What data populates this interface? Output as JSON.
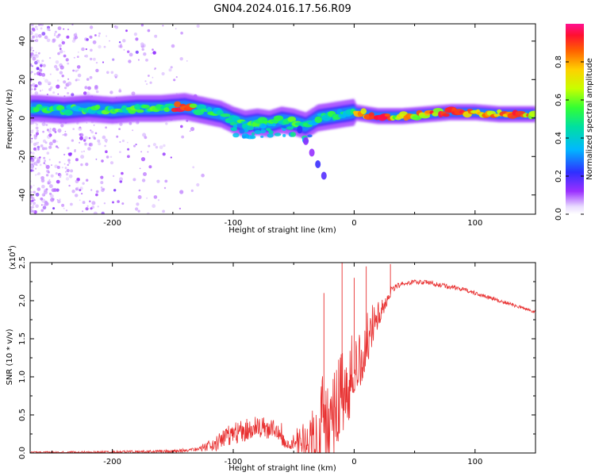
{
  "title": "GN04.2024.016.17.56.R09",
  "chart_data": [
    {
      "type": "heatmap",
      "xlabel": "Height of straight line (km)",
      "ylabel": "Frequency (Hz)",
      "xlim": [
        -268,
        150
      ],
      "ylim": [
        -50,
        49
      ],
      "xticks": [
        -200,
        -100,
        0,
        100
      ],
      "xtick_labels": [
        "-200",
        "-100",
        "0",
        "100"
      ],
      "yticks": [
        -40,
        -20,
        0,
        20,
        40
      ],
      "ytick_labels": [
        "-40",
        "-20",
        "0",
        "20",
        "40"
      ],
      "colorbar": {
        "label": "Normalized spectral amplitude",
        "range": [
          0,
          1
        ],
        "ticks": [
          0.0,
          0.2,
          0.4,
          0.6,
          0.8
        ],
        "tick_labels": [
          "0.0",
          "0.2",
          "0.4",
          "0.6",
          "0.8"
        ]
      },
      "ridge": {
        "x": [
          -262,
          -240,
          -220,
          -200,
          -180,
          -160,
          -140,
          -125,
          -110,
          -100,
          -90,
          -80,
          -70,
          -60,
          -50,
          -40,
          -30,
          -20,
          -10,
          0,
          10,
          20,
          40,
          60,
          80,
          100,
          120,
          150
        ],
        "y": [
          5,
          4,
          5,
          4,
          5,
          5,
          6,
          4,
          2,
          -1,
          -3,
          -2,
          -3,
          -1,
          -2,
          -4,
          0,
          1,
          2,
          3,
          2,
          1,
          1,
          2,
          3,
          3,
          2,
          2
        ]
      },
      "branch": {
        "x": [
          -45,
          -40,
          -35,
          -30,
          -25
        ],
        "y": [
          -6,
          -12,
          -18,
          -24,
          -30
        ]
      }
    },
    {
      "type": "line",
      "xlabel": "Height of straight line (km)",
      "ylabel": "SNR (10 * v/v)",
      "y_multiplier_label": "(x10",
      "y_multiplier_exp": "4",
      "xlim": [
        -268,
        150
      ],
      "ylim": [
        0,
        2.5
      ],
      "xticks": [
        -200,
        -100,
        0,
        100
      ],
      "xtick_labels": [
        "-200",
        "-100",
        "0",
        "100"
      ],
      "yticks": [
        0,
        0.5,
        1.0,
        1.5,
        2.0,
        2.5
      ],
      "ytick_labels": [
        "0.0",
        "0.5",
        "1.0",
        "1.5",
        "2.0",
        "2.5"
      ],
      "color": "#e83030",
      "envelope": {
        "x": [
          -268,
          -200,
          -150,
          -130,
          -115,
          -105,
          -95,
          -80,
          -65,
          -50,
          -40,
          -30,
          -20,
          -10,
          0,
          10,
          20,
          30,
          40,
          50,
          60,
          70,
          80,
          90,
          100,
          110,
          120,
          130,
          140,
          150
        ],
        "y": [
          0.01,
          0.01,
          0.02,
          0.05,
          0.12,
          0.22,
          0.28,
          0.35,
          0.3,
          0.25,
          0.6,
          1.0,
          1.2,
          1.45,
          1.7,
          1.9,
          2.05,
          2.15,
          2.22,
          2.25,
          2.24,
          2.21,
          2.18,
          2.15,
          2.1,
          2.05,
          2.0,
          1.95,
          1.9,
          1.85
        ]
      },
      "spread": {
        "x": [
          -268,
          -130,
          -110,
          -90,
          -60,
          -50,
          -40,
          -30,
          -20,
          -10,
          0,
          10,
          20,
          30,
          40,
          80,
          150
        ],
        "y": [
          0.02,
          0.05,
          0.25,
          0.3,
          0.25,
          0.2,
          0.8,
          1.2,
          1.3,
          1.3,
          1.1,
          0.8,
          0.4,
          0.1,
          0.06,
          0.06,
          0.04
        ]
      },
      "spikes": [
        {
          "x": -10,
          "y": 2.5
        },
        {
          "x": 10,
          "y": 2.45
        },
        {
          "x": 30,
          "y": 2.48
        },
        {
          "x": -25,
          "y": 2.1
        },
        {
          "x": 0,
          "y": 2.3
        }
      ]
    }
  ]
}
